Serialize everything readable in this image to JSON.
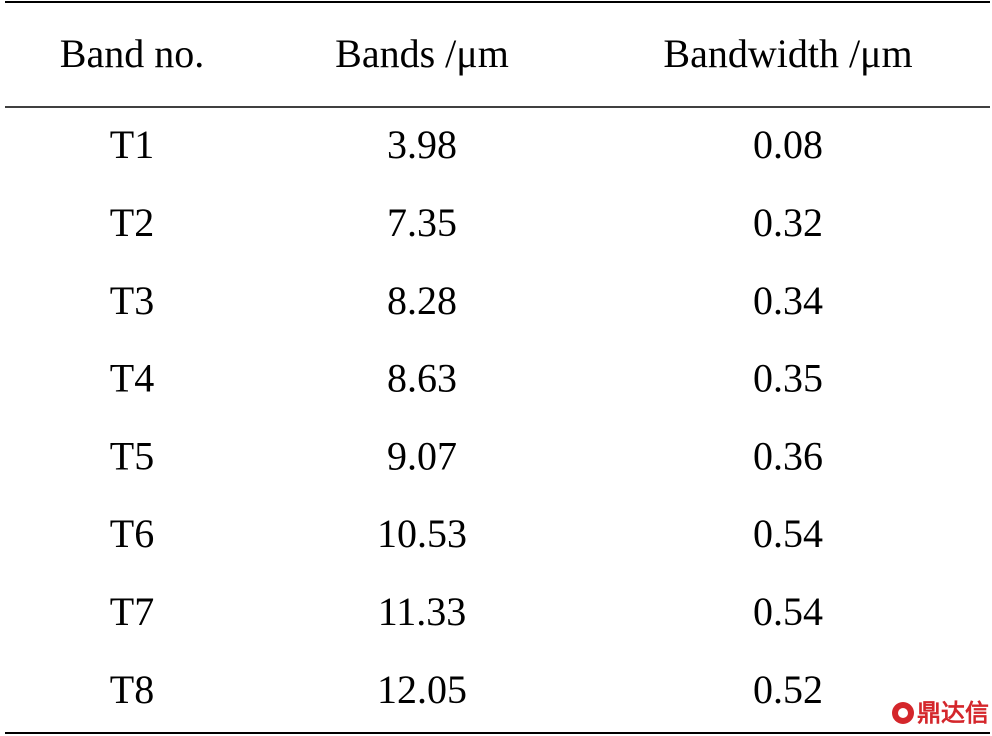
{
  "table": {
    "header": [
      "Band no.",
      "Bands /μm",
      "Bandwidth /μm"
    ],
    "rows": [
      [
        "T1",
        "3.98",
        "0.08"
      ],
      [
        "T2",
        "7.35",
        "0.32"
      ],
      [
        "T3",
        "8.28",
        "0.34"
      ],
      [
        "T4",
        "8.63",
        "0.35"
      ],
      [
        "T5",
        "9.07",
        "0.36"
      ],
      [
        "T6",
        "10.53",
        "0.54"
      ],
      [
        "T7",
        "11.33",
        "0.54"
      ],
      [
        "T8",
        "12.05",
        "0.52"
      ]
    ]
  },
  "watermark": "鼎达信"
}
